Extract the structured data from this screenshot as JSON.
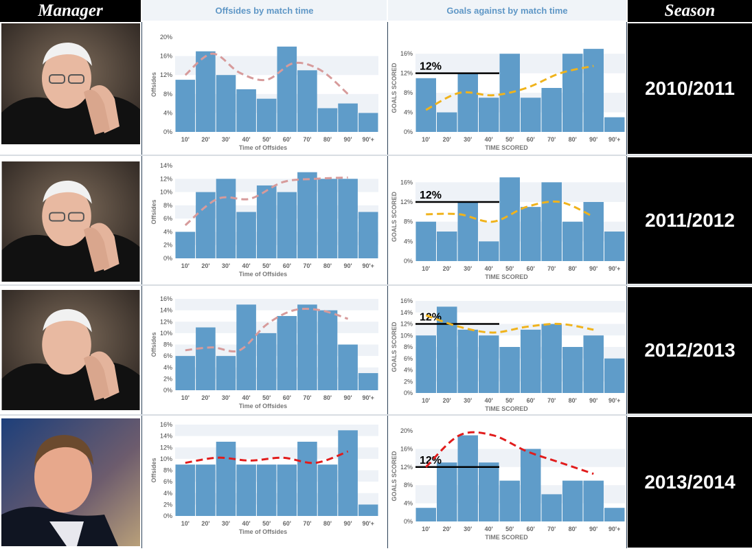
{
  "header": {
    "manager_label": "Manager",
    "offsides_title": "Offsides by match time",
    "goals_title": "Goals against by match time",
    "season_label": "Season"
  },
  "colors": {
    "bar": "#5f9cc9",
    "band": "#eef2f7",
    "axis_text": "#444444",
    "ref_line": "#000000",
    "trend_offsides": "#d79b9b",
    "trend_goals_a": "#f0b31c",
    "trend_goals_b": "#e11c1c"
  },
  "rows": [
    {
      "season": "2010/2011",
      "manager_icon": "alex-ferguson-photo-icon"
    },
    {
      "season": "2011/2012",
      "manager_icon": "alex-ferguson-photo-icon"
    },
    {
      "season": "2012/2013",
      "manager_icon": "alex-ferguson-photo-icon"
    },
    {
      "season": "2013/2014",
      "manager_icon": "david-moyes-photo-icon"
    }
  ],
  "chart_data": [
    {
      "type": "bar",
      "season": "2010/2011",
      "title": "Offsides by match time",
      "categories": [
        "10'",
        "20'",
        "30'",
        "40'",
        "50'",
        "60'",
        "70'",
        "80'",
        "90'",
        "90'+"
      ],
      "values": [
        11,
        17,
        12,
        9,
        7,
        18,
        13,
        5,
        6,
        4
      ],
      "ylim": [
        0,
        20
      ],
      "yticks": [
        "0%",
        "4%",
        "8%",
        "12%",
        "16%",
        "20%"
      ],
      "xlabel": "Time of Offsides",
      "ylabel": "Offsides",
      "trend": [
        12,
        16.5,
        12.5,
        11,
        14.5,
        13,
        8
      ],
      "trend_color": "#d79b9b"
    },
    {
      "type": "bar",
      "season": "2010/2011",
      "title": "Goals against by match time",
      "categories": [
        "10'",
        "20'",
        "30'",
        "40'",
        "50'",
        "60'",
        "70'",
        "80'",
        "90'",
        "90'+"
      ],
      "values": [
        11,
        4,
        12,
        7,
        16,
        7,
        9,
        16,
        17,
        3
      ],
      "ylim": [
        0,
        18
      ],
      "yticks": [
        "0%",
        "4%",
        "8%",
        "12%",
        "16%"
      ],
      "xlabel": "TIME SCORED",
      "ylabel": "GOALS SCORED",
      "ref_line": {
        "value": 12,
        "label": "12%"
      },
      "trend": [
        4.5,
        8,
        7.5,
        9,
        12,
        13.5
      ],
      "trend_color": "#f0b31c"
    },
    {
      "type": "bar",
      "season": "2011/2012",
      "title": "Offsides by match time",
      "categories": [
        "10'",
        "20'",
        "30'",
        "40'",
        "50'",
        "60'",
        "70'",
        "80'",
        "90'",
        "90'+"
      ],
      "values": [
        4,
        10,
        12,
        7,
        11,
        10,
        13,
        12,
        12,
        7
      ],
      "ylim": [
        0,
        14
      ],
      "yticks": [
        "0%",
        "2%",
        "4%",
        "6%",
        "8%",
        "10%",
        "12%",
        "14%"
      ],
      "xlabel": "Time of Offsides",
      "ylabel": "Offsides",
      "trend": [
        5,
        9,
        9,
        11.5,
        12,
        12.2
      ],
      "trend_color": "#d79b9b"
    },
    {
      "type": "bar",
      "season": "2011/2012",
      "title": "Goals against by match time",
      "categories": [
        "10'",
        "20'",
        "30'",
        "40'",
        "50'",
        "60'",
        "70'",
        "80'",
        "90'",
        "90'+"
      ],
      "values": [
        8,
        6,
        12,
        4,
        17,
        11,
        16,
        8,
        12,
        6
      ],
      "ylim": [
        0,
        18
      ],
      "yticks": [
        "0%",
        "4%",
        "8%",
        "12%",
        "16%"
      ],
      "xlabel": "TIME SCORED",
      "ylabel": "GOALS SCORED",
      "ref_line": {
        "value": 12,
        "label": "12%"
      },
      "trend": [
        9.5,
        9.5,
        8,
        11,
        12,
        9
      ],
      "trend_color": "#f0b31c"
    },
    {
      "type": "bar",
      "season": "2012/2013",
      "title": "Offsides by match time",
      "categories": [
        "10'",
        "20'",
        "30'",
        "40'",
        "50'",
        "60'",
        "70'",
        "80'",
        "90'",
        "90'+"
      ],
      "values": [
        6,
        11,
        6,
        15,
        10,
        13,
        15,
        14,
        8,
        3
      ],
      "ylim": [
        0,
        16
      ],
      "yticks": [
        "0%",
        "2%",
        "4%",
        "6%",
        "8%",
        "10%",
        "12%",
        "14%",
        "16%"
      ],
      "xlabel": "Time of Offsides",
      "ylabel": "Offsides",
      "trend": [
        7,
        7.5,
        7,
        11.5,
        14,
        14,
        12.5
      ],
      "trend_color": "#d79b9b"
    },
    {
      "type": "bar",
      "season": "2012/2013",
      "title": "Goals against by match time",
      "categories": [
        "10'",
        "20'",
        "30'",
        "40'",
        "50'",
        "60'",
        "70'",
        "80'",
        "90'",
        "90'+"
      ],
      "values": [
        10,
        15,
        11,
        10,
        8,
        11,
        12,
        8,
        10,
        6
      ],
      "ylim": [
        0,
        16
      ],
      "yticks": [
        "0%",
        "2%",
        "4%",
        "6%",
        "8%",
        "10%",
        "12%",
        "14%",
        "16%"
      ],
      "xlabel": "TIME SCORED",
      "ylabel": "GOALS SCORED",
      "ref_line": {
        "value": 12,
        "label": "12%"
      },
      "trend": [
        13.5,
        11.5,
        10.5,
        11.5,
        12,
        11
      ],
      "trend_color": "#f0b31c"
    },
    {
      "type": "bar",
      "season": "2013/2014",
      "title": "Offsides by match time",
      "categories": [
        "10'",
        "20'",
        "30'",
        "40'",
        "50'",
        "60'",
        "70'",
        "80'",
        "90'",
        "90'+"
      ],
      "values": [
        9,
        9,
        13,
        9,
        9,
        9,
        13,
        9,
        15,
        2
      ],
      "ylim": [
        0,
        16
      ],
      "yticks": [
        "0%",
        "2%",
        "4%",
        "6%",
        "8%",
        "10%",
        "12%",
        "14%",
        "16%"
      ],
      "xlabel": "Time of Offsides",
      "ylabel": "Offsides",
      "trend": [
        9.3,
        10.2,
        9.7,
        10.2,
        9.3,
        11.3
      ],
      "trend_color": "#e11c1c"
    },
    {
      "type": "bar",
      "season": "2013/2014",
      "title": "Goals against by match time",
      "categories": [
        "10'",
        "20'",
        "30'",
        "40'",
        "50'",
        "60'",
        "70'",
        "80'",
        "90'",
        "90'+"
      ],
      "values": [
        3,
        13,
        19,
        13,
        9,
        16,
        6,
        9,
        9,
        3
      ],
      "ylim": [
        0,
        20
      ],
      "yticks": [
        "0%",
        "4%",
        "8%",
        "12%",
        "16%",
        "20%"
      ],
      "xlabel": "TIME SCORED",
      "ylabel": "GOALS SCORED",
      "ref_line": {
        "value": 12,
        "label": "12%"
      },
      "trend": [
        12,
        19,
        19,
        15.5,
        13,
        10.5
      ],
      "trend_color": "#e11c1c"
    }
  ]
}
